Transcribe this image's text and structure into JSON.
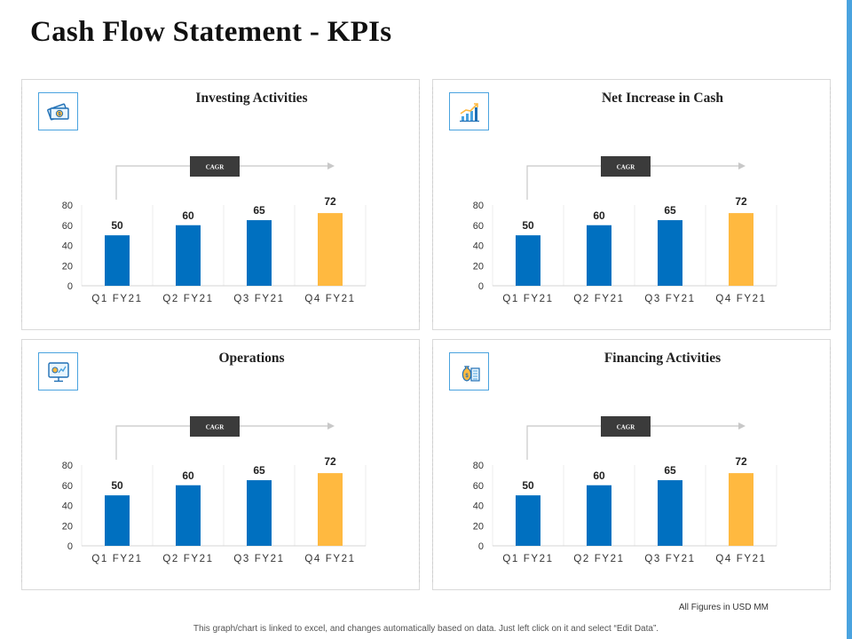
{
  "page": {
    "title": "Cash Flow Statement - KPIs",
    "footnote": "All Figures in USD MM",
    "disclaimer": "This graph/chart is linked to excel, and changes automatically based on data. Just left click on it and select “Edit Data”."
  },
  "colors": {
    "bar_primary": "#0070c0",
    "bar_highlight": "#ffb940",
    "accent": "#4aa3df",
    "cagr_bg": "#3b3b3b"
  },
  "chart_data": [
    {
      "type": "bar",
      "title": "Investing Activities",
      "icon": "money-icon",
      "cagr_label": "CAGR",
      "categories": [
        "Q1 FY21",
        "Q2 FY21",
        "Q3 FY21",
        "Q4 FY21"
      ],
      "values": [
        50,
        60,
        65,
        72
      ],
      "ylim": [
        0,
        80
      ],
      "yticks": [
        0,
        20,
        40,
        60,
        80
      ],
      "xlabel": "",
      "ylabel": ""
    },
    {
      "type": "bar",
      "title": "Net Increase in Cash",
      "icon": "growth-chart-icon",
      "cagr_label": "CAGR",
      "categories": [
        "Q1 FY21",
        "Q2 FY21",
        "Q3 FY21",
        "Q4 FY21"
      ],
      "values": [
        50,
        60,
        65,
        72
      ],
      "ylim": [
        0,
        80
      ],
      "yticks": [
        0,
        20,
        40,
        60,
        80
      ],
      "xlabel": "",
      "ylabel": ""
    },
    {
      "type": "bar",
      "title": "Operations",
      "icon": "monitor-settings-icon",
      "cagr_label": "CAGR",
      "categories": [
        "Q1 FY21",
        "Q2 FY21",
        "Q3 FY21",
        "Q4 FY21"
      ],
      "values": [
        50,
        60,
        65,
        72
      ],
      "ylim": [
        0,
        80
      ],
      "yticks": [
        0,
        20,
        40,
        60,
        80
      ],
      "xlabel": "",
      "ylabel": ""
    },
    {
      "type": "bar",
      "title": "Financing Activities",
      "icon": "money-bag-icon",
      "cagr_label": "CAGR",
      "categories": [
        "Q1 FY21",
        "Q2 FY21",
        "Q3 FY21",
        "Q4 FY21"
      ],
      "values": [
        50,
        60,
        65,
        72
      ],
      "ylim": [
        0,
        80
      ],
      "yticks": [
        0,
        20,
        40,
        60,
        80
      ],
      "xlabel": "",
      "ylabel": ""
    }
  ]
}
